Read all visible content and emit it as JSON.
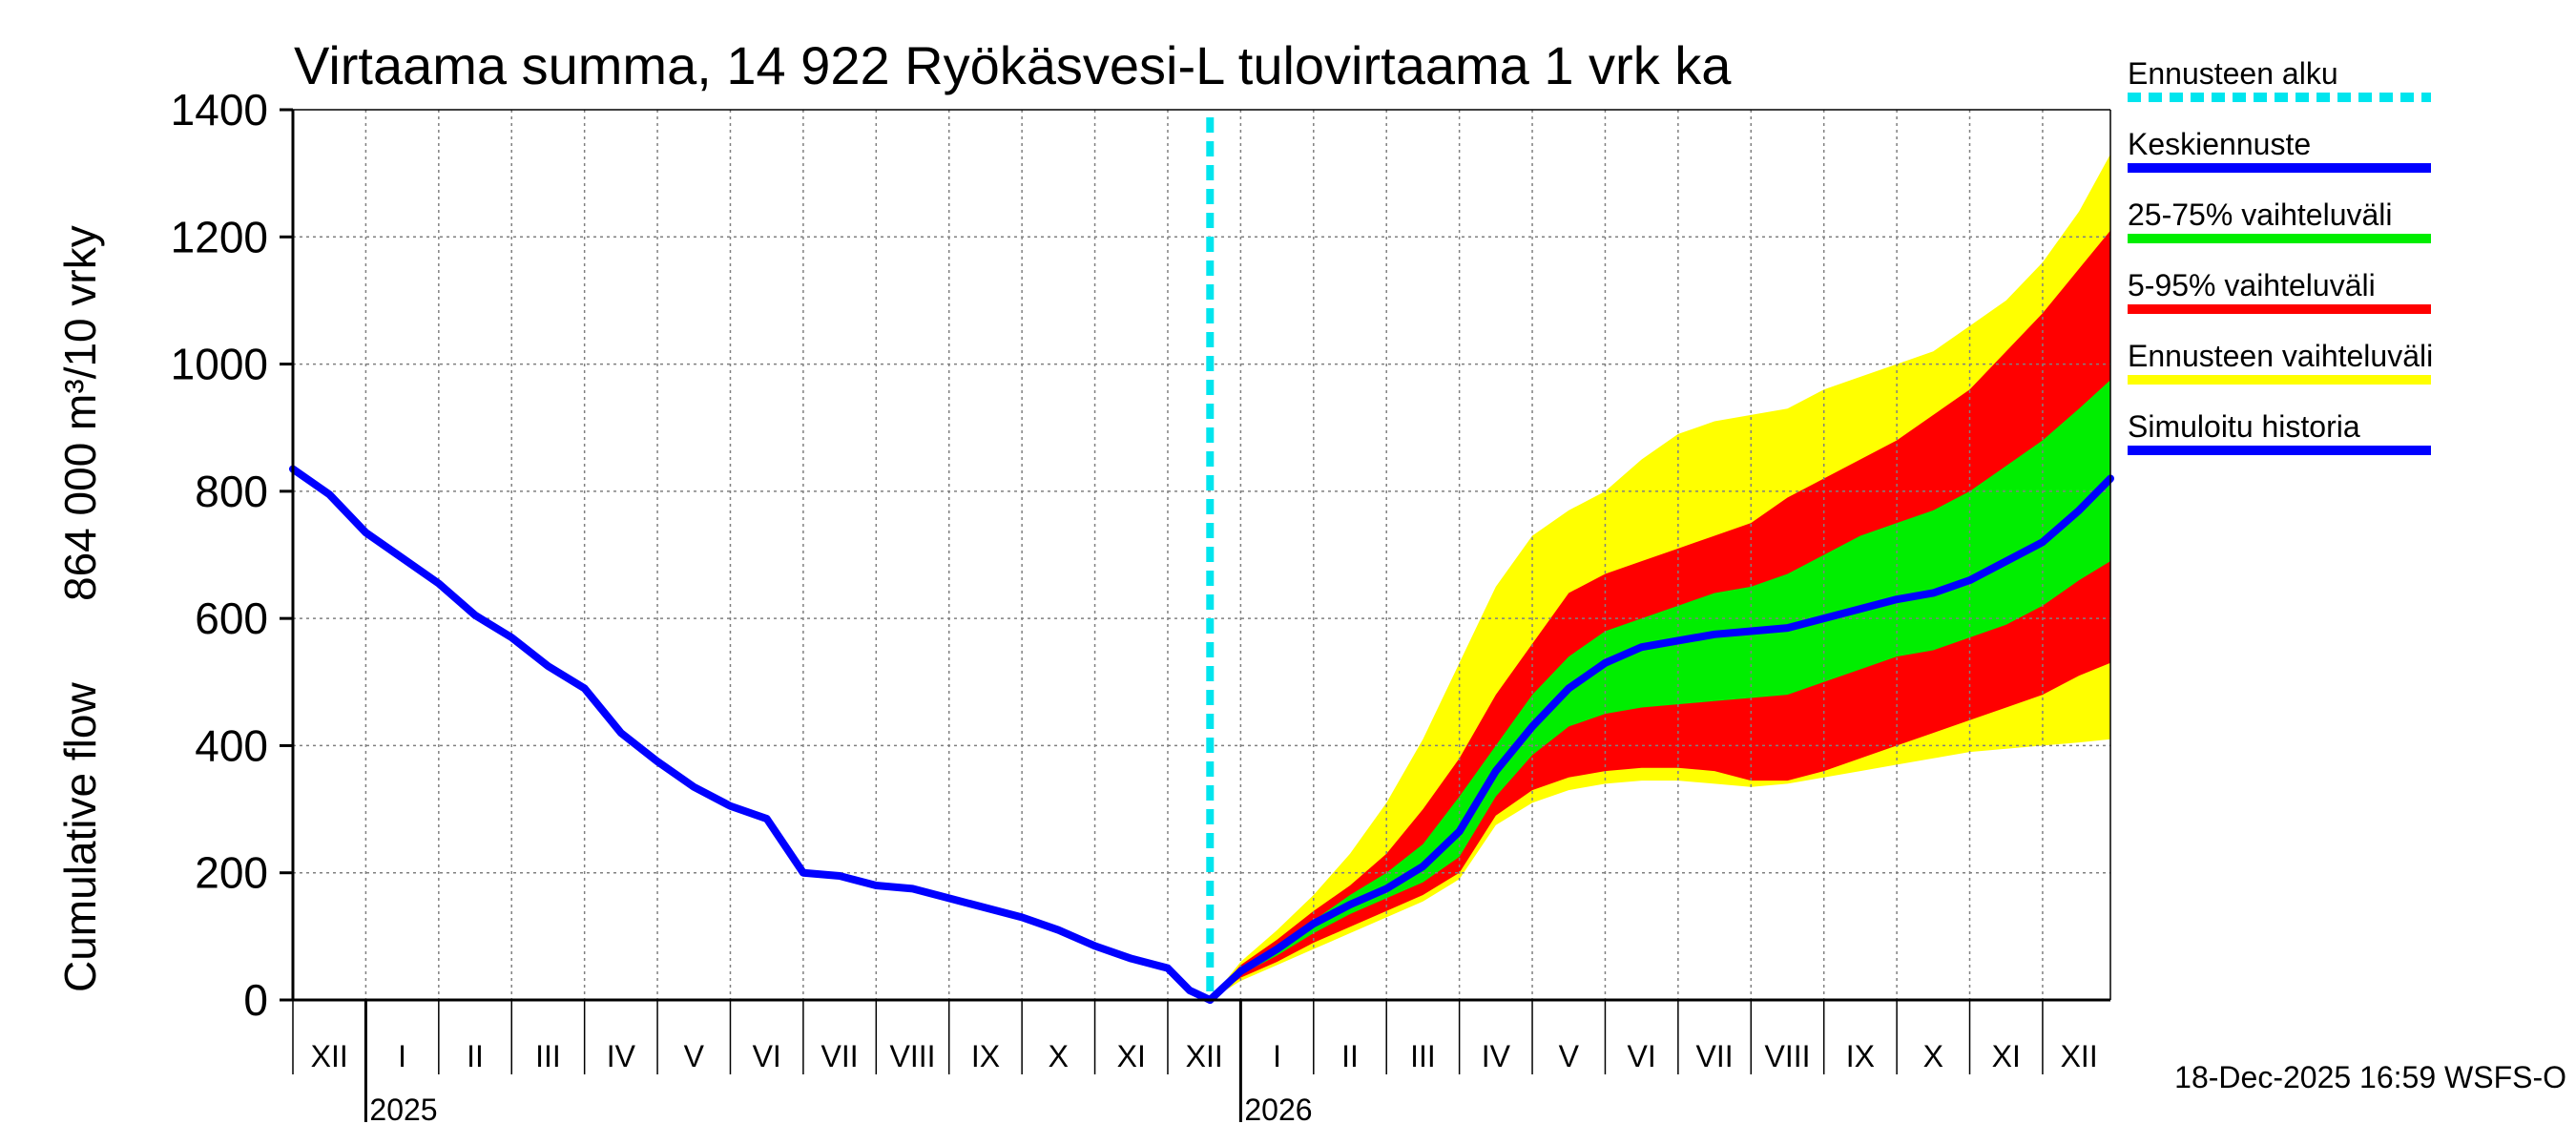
{
  "chart_data": {
    "type": "area",
    "title": "Virtaama summa, 14 922 Ryökäsvesi-L tulovirtaama 1 vrk ka",
    "ylabel_line1": "Cumulative flow",
    "ylabel_line2": "864 000 m³/10 vrky",
    "ylim": [
      0,
      1400
    ],
    "yticks": [
      0,
      200,
      400,
      600,
      800,
      1000,
      1200,
      1400
    ],
    "x_unit": "months from 1 Dec 2024",
    "xlim": [
      0,
      24.93
    ],
    "forecast_start": 12.58,
    "month_labels": [
      "XII",
      "I",
      "II",
      "III",
      "IV",
      "V",
      "VI",
      "VII",
      "VIII",
      "IX",
      "X",
      "XI",
      "XII",
      "I",
      "II",
      "III",
      "IV",
      "V",
      "VI",
      "VII",
      "VIII",
      "IX",
      "X",
      "XI",
      "XII"
    ],
    "year_labels": [
      {
        "label": "2025",
        "x": 1
      },
      {
        "label": "2026",
        "x": 13
      }
    ],
    "timestamp": "18-Dec-2025 16:59 WSFS-O",
    "grid": true,
    "legend": [
      {
        "label": "Ennusteen alku",
        "color": "#00e5ee",
        "style": "dashed"
      },
      {
        "label": "Keskiennuste",
        "color": "#0000ff",
        "style": "solid"
      },
      {
        "label": "25-75% vaihteluväli",
        "color": "#00ee00",
        "style": "solid"
      },
      {
        "label": "5-95% vaihteluväli",
        "color": "#ff0000",
        "style": "solid"
      },
      {
        "label": "Ennusteen vaihteluväli",
        "color": "#ffff00",
        "style": "solid"
      },
      {
        "label": "Simuloitu historia",
        "color": "#0000ff",
        "style": "solid"
      }
    ],
    "history": {
      "name": "Simuloitu historia",
      "x": [
        0,
        0.5,
        1,
        1.5,
        2,
        2.5,
        3,
        3.5,
        4,
        4.5,
        5,
        5.5,
        6,
        6.5,
        7,
        7.5,
        8,
        8.5,
        9,
        9.5,
        10,
        10.5,
        11,
        11.5,
        12,
        12.3,
        12.58
      ],
      "y": [
        835,
        795,
        735,
        695,
        655,
        605,
        570,
        525,
        490,
        420,
        375,
        335,
        305,
        285,
        200,
        195,
        180,
        175,
        160,
        145,
        130,
        110,
        85,
        65,
        50,
        15,
        0
      ]
    },
    "forecast_x": [
      12.58,
      13,
      13.5,
      14,
      14.5,
      15,
      15.5,
      16,
      16.5,
      17,
      17.5,
      18,
      18.5,
      19,
      19.5,
      20,
      20.5,
      21,
      21.5,
      22,
      22.5,
      23,
      23.5,
      24,
      24.5,
      24.93
    ],
    "series": [
      {
        "name": "Ennusteen vaihteluväli max",
        "values": [
          0,
          60,
          110,
          165,
          230,
          310,
          410,
          530,
          650,
          730,
          770,
          800,
          850,
          890,
          910,
          920,
          930,
          960,
          980,
          1000,
          1020,
          1060,
          1100,
          1160,
          1240,
          1330
        ]
      },
      {
        "name": "95%",
        "values": [
          0,
          55,
          95,
          140,
          180,
          230,
          300,
          380,
          480,
          560,
          640,
          670,
          690,
          710,
          730,
          750,
          790,
          820,
          850,
          880,
          920,
          960,
          1020,
          1080,
          1150,
          1210
        ]
      },
      {
        "name": "75%",
        "values": [
          0,
          50,
          85,
          125,
          165,
          200,
          245,
          320,
          400,
          480,
          540,
          580,
          600,
          620,
          640,
          650,
          670,
          700,
          730,
          750,
          770,
          800,
          840,
          880,
          930,
          975
        ]
      },
      {
        "name": "Keskiennuste",
        "values": [
          0,
          45,
          80,
          120,
          150,
          175,
          210,
          265,
          360,
          430,
          490,
          530,
          555,
          565,
          575,
          580,
          585,
          600,
          615,
          630,
          640,
          660,
          690,
          720,
          770,
          820
        ]
      },
      {
        "name": "25%",
        "values": [
          0,
          40,
          70,
          105,
          135,
          160,
          185,
          225,
          320,
          385,
          430,
          450,
          460,
          465,
          470,
          475,
          480,
          500,
          520,
          540,
          550,
          570,
          590,
          620,
          660,
          690
        ]
      },
      {
        "name": "5%",
        "values": [
          0,
          35,
          60,
          90,
          115,
          140,
          165,
          200,
          290,
          330,
          350,
          360,
          365,
          365,
          360,
          345,
          345,
          360,
          380,
          400,
          420,
          440,
          460,
          480,
          510,
          530
        ]
      },
      {
        "name": "Ennusteen vaihteluväli min",
        "values": [
          0,
          30,
          55,
          80,
          105,
          130,
          155,
          190,
          275,
          310,
          330,
          340,
          345,
          345,
          340,
          335,
          340,
          350,
          360,
          370,
          380,
          390,
          395,
          400,
          405,
          410
        ]
      }
    ]
  }
}
